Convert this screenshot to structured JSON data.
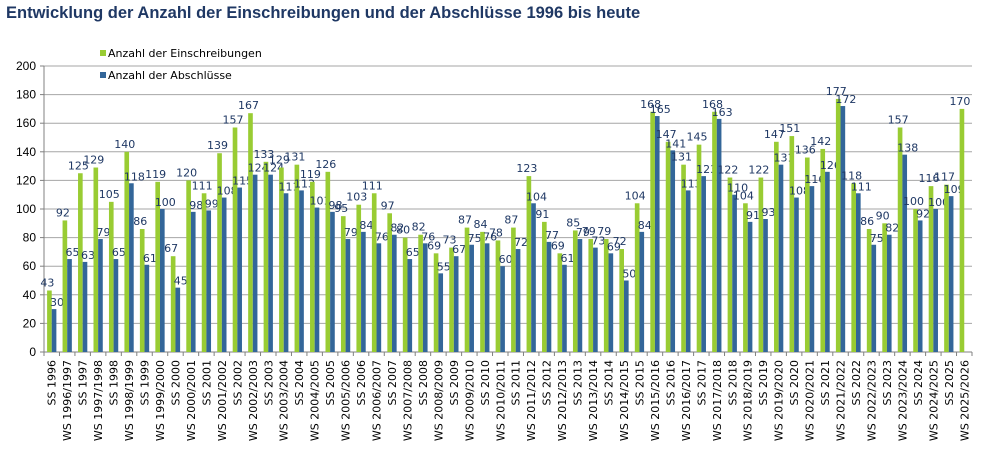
{
  "title": "Entwicklung der Anzahl der Einschreibungen und der Abschlüsse 1996 bis heute",
  "chart_data": {
    "type": "bar",
    "title": "Entwicklung der Anzahl der Einschreibungen und der Abschlüsse 1996 bis heute",
    "xlabel": "",
    "ylabel": "",
    "ylim": [
      0,
      200
    ],
    "yticks": [
      0,
      20,
      40,
      60,
      80,
      100,
      120,
      140,
      160,
      180,
      200
    ],
    "grid": true,
    "legend_position": "top-left",
    "categories": [
      "SS 1996",
      "WS 1996/1997",
      "SS 1997",
      "WS 1997/1998",
      "SS 1998",
      "WS 1998/1999",
      "SS 1999",
      "WS 1999/2000",
      "SS 2000",
      "WS 2000/2001",
      "SS 2001",
      "WS 2001/2002",
      "SS 2002",
      "WS 2002/2003",
      "SS 2003",
      "WS 2003/2004",
      "SS 2004",
      "WS 2004/2005",
      "SS 2005",
      "WS 2005/2006",
      "SS 2006",
      "WS 2006/2007",
      "SS 2007",
      "WS 2007/2008",
      "SS 2008",
      "WS 2008/2009",
      "SS 2009",
      "WS 2009/2010",
      "SS 2010",
      "WS 2010/2011",
      "SS 2011",
      "WS 2011/2012",
      "SS 2012",
      "WS 2012/2013",
      "SS 2013",
      "WS 2013/2014",
      "SS 2014",
      "WS 2014/2015",
      "SS 2015",
      "WS 2015/2016",
      "SS 2016",
      "WS 2016/2017",
      "SS 2017",
      "WS 2017/2018",
      "SS 2018",
      "WS 2018/2019",
      "SS 2019",
      "WS 2019/2020",
      "SS 2020",
      "WS 2020/2021",
      "SS 2021",
      "WS 2021/2022",
      "SS 2022",
      "WS 2022/2023",
      "SS 2023",
      "WS 2023/2024",
      "SS 2024",
      "WS 2024/2025",
      "SS 2025",
      "WS 2025/2026"
    ],
    "series": [
      {
        "name": "Anzahl der Einschreibungen",
        "color": "#99cc33",
        "values": [
          43,
          92,
          125,
          129,
          105,
          140,
          86,
          119,
          67,
          120,
          111,
          139,
          157,
          167,
          133,
          129,
          131,
          119,
          126,
          95,
          103,
          111,
          97,
          80,
          82,
          69,
          73,
          87,
          84,
          78,
          87,
          123,
          91,
          69,
          85,
          79,
          79,
          72,
          104,
          168,
          147,
          131,
          145,
          168,
          122,
          104,
          122,
          147,
          151,
          136,
          142,
          177,
          118,
          86,
          90,
          157,
          100,
          116,
          117,
          170
        ]
      },
      {
        "name": "Anzahl der Abschlüsse",
        "color": "#336699",
        "values": [
          30,
          65,
          63,
          79,
          65,
          118,
          61,
          100,
          45,
          98,
          99,
          108,
          115,
          124,
          124,
          111,
          113,
          101,
          98,
          79,
          84,
          76,
          82,
          65,
          76,
          55,
          67,
          75,
          76,
          60,
          72,
          104,
          77,
          61,
          79,
          73,
          69,
          50,
          84,
          165,
          141,
          113,
          123,
          163,
          110,
          91,
          93,
          131,
          108,
          116,
          126,
          172,
          111,
          75,
          82,
          138,
          92,
          100,
          109,
          null
        ]
      }
    ]
  }
}
